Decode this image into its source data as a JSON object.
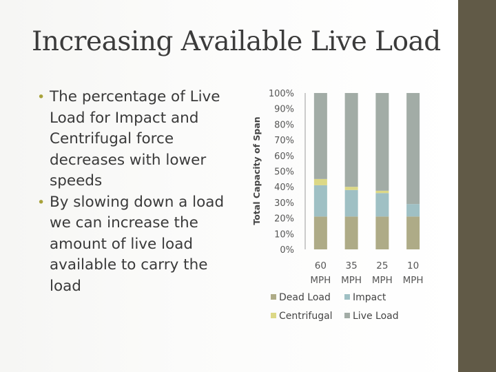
{
  "slide": {
    "title": "Increasing Available Live Load",
    "bullets": [
      "The percentage of Live Load for Impact and Centrifugal force decreases with lower speeds",
      "By slowing down a load we can increase the amount of live load available to carry the load"
    ]
  },
  "chart_data": {
    "type": "bar",
    "stacked": true,
    "categories": [
      [
        "60",
        "MPH"
      ],
      [
        "35",
        "MPH"
      ],
      [
        "25",
        "MPH"
      ],
      [
        "10",
        "MPH"
      ]
    ],
    "series": [
      {
        "name": "Dead Load",
        "color": "#aeab87",
        "values": [
          21,
          21,
          21,
          21
        ]
      },
      {
        "name": "Impact",
        "color": "#9fc0c4",
        "values": [
          20,
          17,
          15,
          8
        ]
      },
      {
        "name": "Centrifugal",
        "color": "#dcd886",
        "values": [
          4,
          2,
          1.5,
          0
        ]
      },
      {
        "name": "Live Load",
        "color": "#a2aca6",
        "values": [
          55,
          60,
          62.5,
          71
        ]
      }
    ],
    "ylabel": "Total Capacity of Span",
    "ylim": [
      0,
      100
    ],
    "yticks": [
      "0%",
      "10%",
      "20%",
      "30%",
      "40%",
      "50%",
      "60%",
      "70%",
      "80%",
      "90%",
      "100%"
    ],
    "legend": [
      "Dead Load",
      "Impact",
      "Centrifugal",
      "Live Load"
    ],
    "legend_position": "bottom"
  }
}
